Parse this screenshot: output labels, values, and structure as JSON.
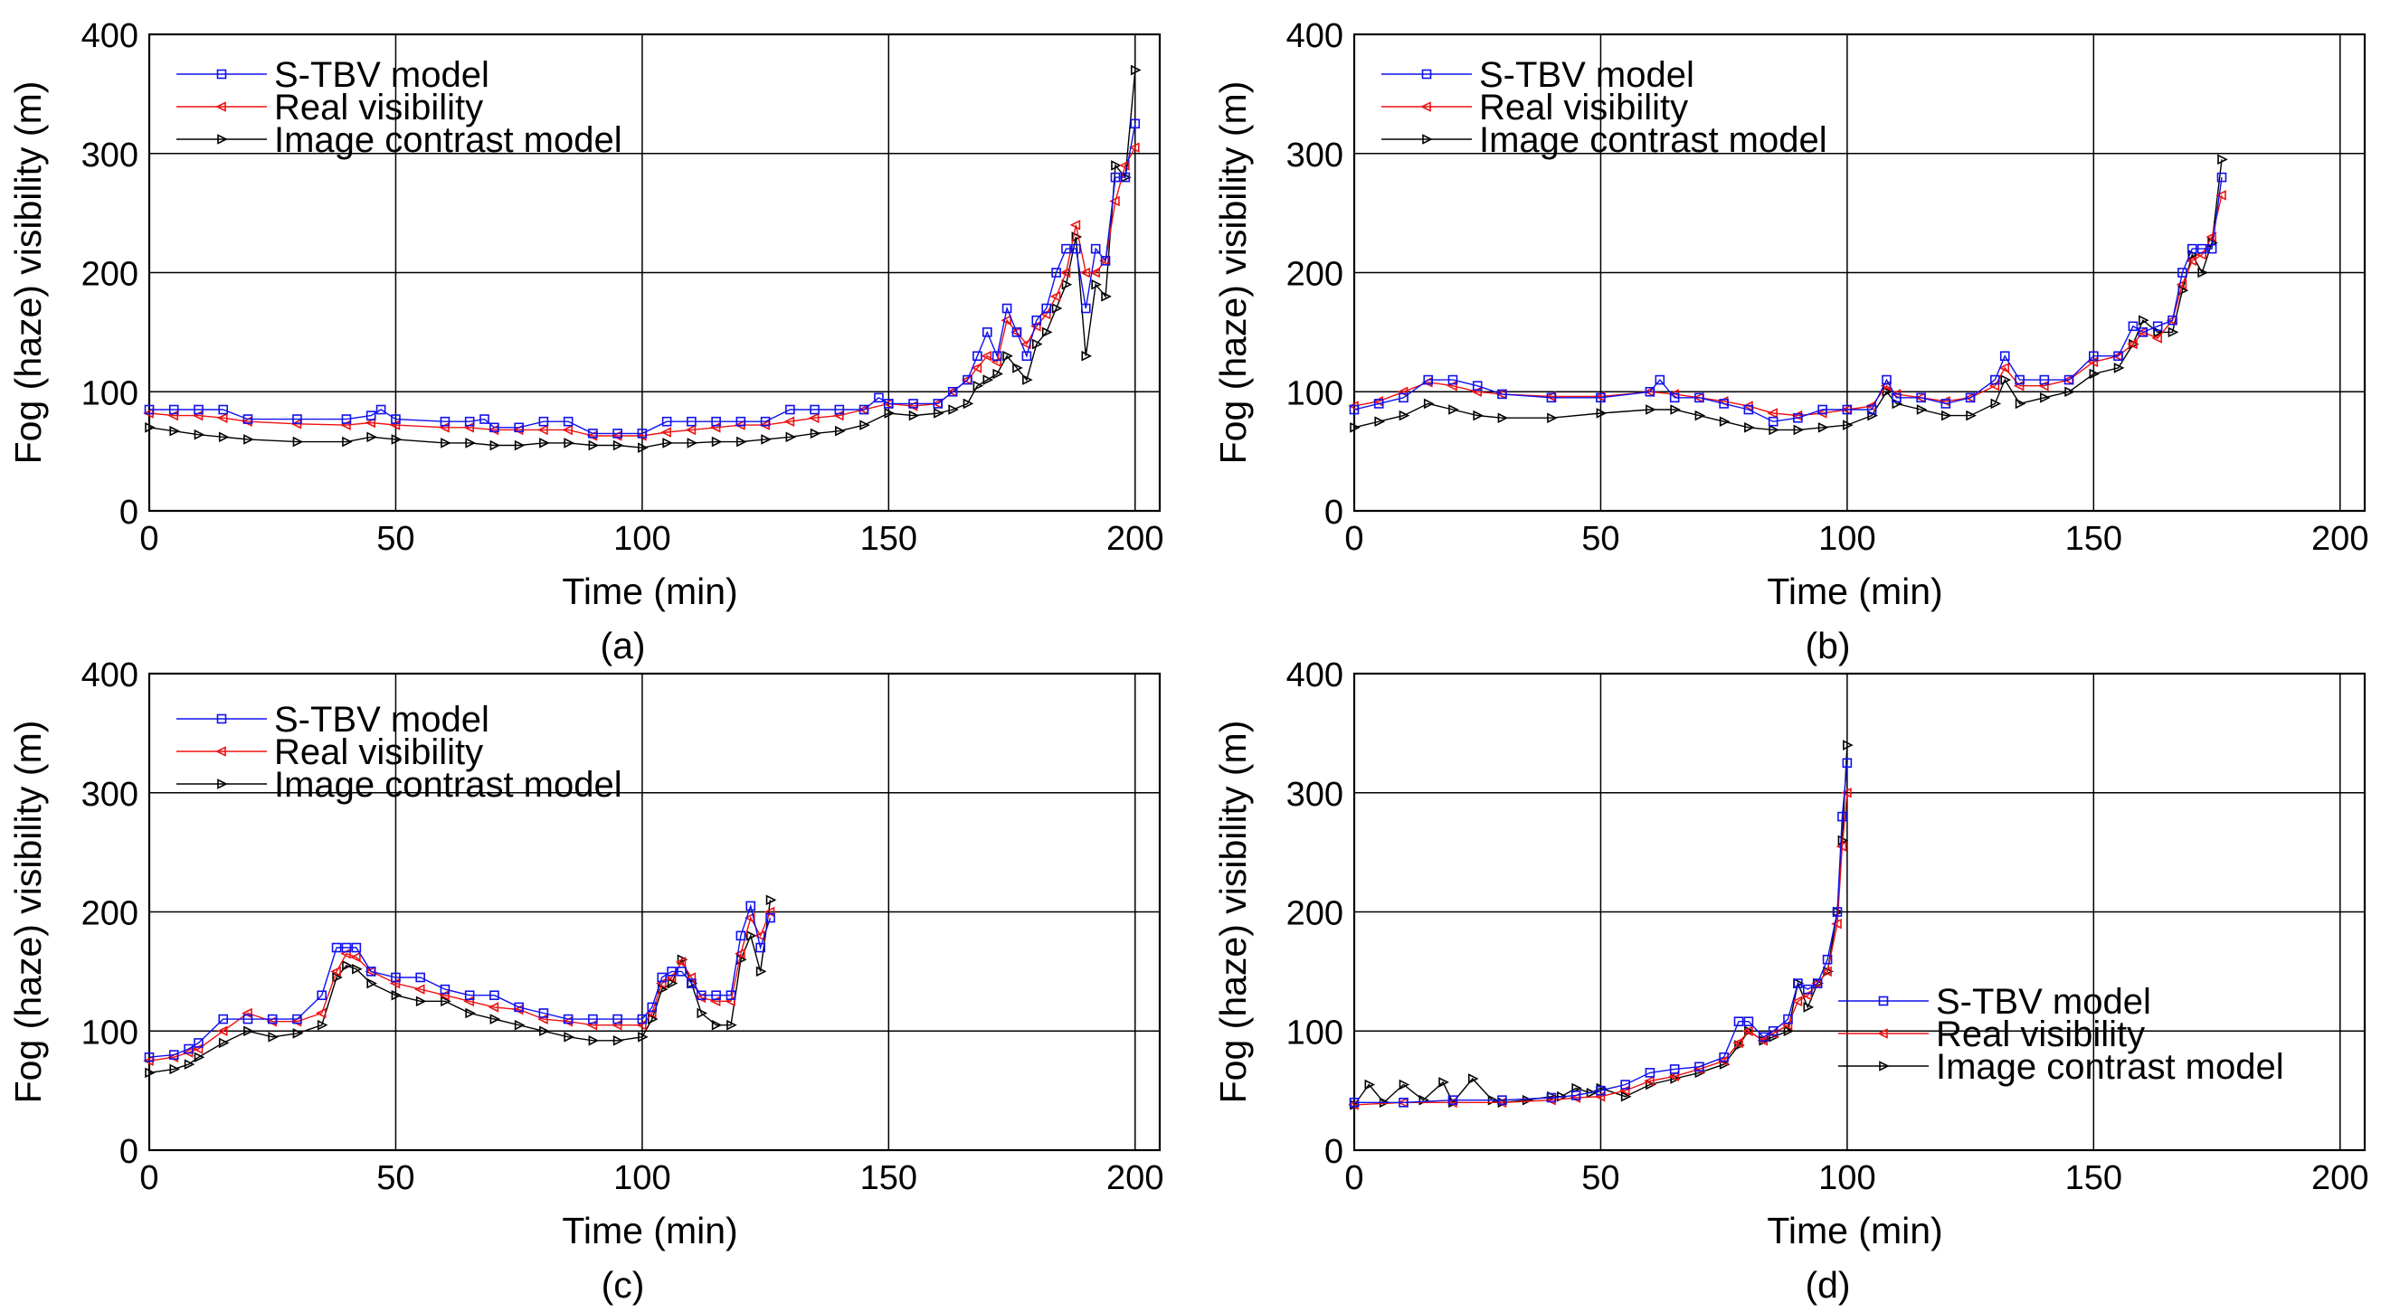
{
  "figure": {
    "x_label": "Time (min)",
    "y_label": "Fog (haze) visibility (m)",
    "colors": {
      "stbv": "#1010ee",
      "real": "#ee1111",
      "contrast": "#000000",
      "grid": "#000000"
    }
  },
  "chart_data": [
    {
      "type": "line",
      "caption": "(a)",
      "xlabel": "Time (min)",
      "ylabel": "Fog (haze) visibility (m)",
      "xlim": [
        0,
        205
      ],
      "ylim": [
        0,
        400
      ],
      "xticks": [
        0,
        50,
        100,
        150,
        200
      ],
      "yticks": [
        0,
        100,
        200,
        300,
        400
      ],
      "grid": true,
      "legend_position": "top-left",
      "series": [
        {
          "name": "S-TBV model",
          "marker": "square",
          "x": [
            0,
            5,
            10,
            15,
            20,
            30,
            40,
            45,
            47,
            50,
            60,
            65,
            68,
            70,
            75,
            80,
            85,
            90,
            95,
            100,
            105,
            110,
            115,
            120,
            125,
            130,
            135,
            140,
            145,
            148,
            150,
            155,
            160,
            163,
            166,
            168,
            170,
            172,
            174,
            176,
            178,
            180,
            182,
            184,
            186,
            188,
            190,
            192,
            194,
            196,
            198,
            200
          ],
          "y": [
            85,
            85,
            85,
            85,
            77,
            77,
            77,
            80,
            85,
            77,
            75,
            75,
            77,
            70,
            70,
            75,
            75,
            65,
            65,
            65,
            75,
            75,
            75,
            75,
            75,
            85,
            85,
            85,
            85,
            95,
            90,
            90,
            90,
            100,
            110,
            130,
            150,
            130,
            170,
            150,
            130,
            160,
            170,
            200,
            220,
            220,
            170,
            220,
            210,
            280,
            280,
            325
          ]
        },
        {
          "name": "Real visibility",
          "marker": "triangle-left",
          "x": [
            0,
            5,
            10,
            15,
            20,
            30,
            40,
            45,
            50,
            60,
            65,
            70,
            75,
            80,
            85,
            90,
            95,
            100,
            105,
            110,
            115,
            120,
            125,
            130,
            135,
            140,
            145,
            150,
            155,
            160,
            163,
            166,
            168,
            170,
            172,
            174,
            176,
            178,
            180,
            182,
            184,
            186,
            188,
            190,
            192,
            194,
            196,
            198,
            200
          ],
          "y": [
            82,
            80,
            80,
            78,
            75,
            73,
            72,
            74,
            72,
            70,
            70,
            68,
            68,
            68,
            68,
            63,
            63,
            63,
            66,
            68,
            70,
            72,
            72,
            75,
            78,
            80,
            85,
            90,
            88,
            90,
            100,
            110,
            120,
            130,
            125,
            160,
            150,
            140,
            155,
            165,
            180,
            200,
            240,
            200,
            200,
            210,
            260,
            290,
            305
          ]
        },
        {
          "name": "Image contrast model",
          "marker": "triangle-right",
          "x": [
            0,
            5,
            10,
            15,
            20,
            30,
            40,
            45,
            50,
            60,
            65,
            70,
            75,
            80,
            85,
            90,
            95,
            100,
            105,
            110,
            115,
            120,
            125,
            130,
            135,
            140,
            145,
            150,
            155,
            160,
            163,
            166,
            168,
            170,
            172,
            174,
            176,
            178,
            180,
            182,
            184,
            186,
            188,
            190,
            192,
            194,
            196,
            198,
            200
          ],
          "y": [
            70,
            67,
            64,
            62,
            60,
            58,
            58,
            62,
            60,
            57,
            57,
            55,
            55,
            57,
            57,
            55,
            55,
            53,
            57,
            57,
            58,
            58,
            60,
            62,
            65,
            67,
            72,
            82,
            80,
            82,
            85,
            90,
            105,
            110,
            115,
            130,
            120,
            110,
            140,
            150,
            170,
            190,
            230,
            130,
            190,
            180,
            290,
            280,
            370
          ]
        }
      ]
    },
    {
      "type": "line",
      "caption": "(b)",
      "xlabel": "Time (min)",
      "ylabel": "Fog (haze) visibility (m)",
      "xlim": [
        0,
        205
      ],
      "ylim": [
        0,
        400
      ],
      "xticks": [
        0,
        50,
        100,
        150,
        200
      ],
      "yticks": [
        0,
        100,
        200,
        300,
        400
      ],
      "grid": true,
      "legend_position": "top-left",
      "series": [
        {
          "name": "S-TBV model",
          "marker": "square",
          "x": [
            0,
            5,
            10,
            15,
            20,
            25,
            30,
            40,
            50,
            60,
            62,
            65,
            70,
            75,
            80,
            85,
            90,
            95,
            100,
            105,
            108,
            110,
            115,
            120,
            125,
            130,
            132,
            135,
            140,
            145,
            150,
            155,
            158,
            160,
            163,
            166,
            168,
            170,
            172,
            174,
            176
          ],
          "y": [
            85,
            90,
            95,
            110,
            110,
            105,
            98,
            95,
            95,
            100,
            110,
            95,
            95,
            90,
            85,
            75,
            78,
            85,
            85,
            85,
            110,
            95,
            95,
            90,
            95,
            110,
            130,
            110,
            110,
            110,
            130,
            130,
            155,
            150,
            155,
            160,
            200,
            220,
            220,
            220,
            280
          ]
        },
        {
          "name": "Real visibility",
          "marker": "triangle-left",
          "x": [
            0,
            5,
            10,
            15,
            20,
            25,
            30,
            40,
            50,
            60,
            65,
            70,
            75,
            80,
            85,
            90,
            95,
            100,
            105,
            108,
            110,
            115,
            120,
            125,
            130,
            132,
            135,
            140,
            145,
            150,
            155,
            158,
            160,
            163,
            166,
            168,
            170,
            172,
            174,
            176
          ],
          "y": [
            88,
            92,
            100,
            108,
            105,
            100,
            98,
            96,
            96,
            100,
            98,
            95,
            92,
            88,
            82,
            80,
            82,
            85,
            88,
            105,
            98,
            95,
            92,
            95,
            105,
            120,
            105,
            105,
            110,
            125,
            130,
            140,
            150,
            145,
            160,
            190,
            210,
            215,
            230,
            265
          ]
        },
        {
          "name": "Image contrast model",
          "marker": "triangle-right",
          "x": [
            0,
            5,
            10,
            15,
            20,
            25,
            30,
            40,
            50,
            60,
            65,
            70,
            75,
            80,
            85,
            90,
            95,
            100,
            105,
            108,
            110,
            115,
            120,
            125,
            130,
            132,
            135,
            140,
            145,
            150,
            155,
            158,
            160,
            163,
            166,
            168,
            170,
            172,
            174,
            176
          ],
          "y": [
            70,
            75,
            80,
            90,
            85,
            80,
            78,
            78,
            82,
            85,
            85,
            80,
            75,
            70,
            68,
            68,
            70,
            72,
            80,
            100,
            90,
            85,
            80,
            80,
            90,
            110,
            90,
            95,
            100,
            115,
            120,
            140,
            160,
            150,
            150,
            185,
            215,
            200,
            225,
            295
          ]
        }
      ]
    },
    {
      "type": "line",
      "caption": "(c)",
      "xlabel": "Time (min)",
      "ylabel": "Fog (haze) visibility (m)",
      "xlim": [
        0,
        205
      ],
      "ylim": [
        0,
        400
      ],
      "xticks": [
        0,
        50,
        100,
        150,
        200
      ],
      "yticks": [
        0,
        100,
        200,
        300,
        400
      ],
      "grid": true,
      "legend_position": "top-left",
      "series": [
        {
          "name": "S-TBV model",
          "marker": "square",
          "x": [
            0,
            5,
            8,
            10,
            15,
            20,
            25,
            30,
            35,
            38,
            40,
            42,
            45,
            50,
            55,
            60,
            65,
            70,
            75,
            80,
            85,
            90,
            95,
            100,
            102,
            104,
            106,
            108,
            110,
            112,
            115,
            118,
            120,
            122,
            124,
            126
          ],
          "y": [
            78,
            80,
            85,
            90,
            110,
            110,
            110,
            110,
            130,
            170,
            170,
            170,
            150,
            145,
            145,
            135,
            130,
            130,
            120,
            115,
            110,
            110,
            110,
            110,
            120,
            145,
            150,
            150,
            140,
            130,
            130,
            130,
            180,
            205,
            170,
            195
          ]
        },
        {
          "name": "Real visibility",
          "marker": "triangle-left",
          "x": [
            0,
            5,
            8,
            10,
            15,
            20,
            25,
            30,
            35,
            38,
            40,
            42,
            45,
            50,
            55,
            60,
            65,
            70,
            75,
            80,
            85,
            90,
            95,
            100,
            102,
            104,
            106,
            108,
            110,
            112,
            115,
            118,
            120,
            122,
            124,
            126
          ],
          "y": [
            75,
            78,
            82,
            85,
            100,
            115,
            108,
            108,
            115,
            150,
            165,
            162,
            150,
            140,
            135,
            130,
            125,
            120,
            118,
            110,
            108,
            105,
            105,
            105,
            115,
            140,
            145,
            158,
            145,
            128,
            125,
            125,
            165,
            195,
            180,
            200
          ]
        },
        {
          "name": "Image contrast model",
          "marker": "triangle-right",
          "x": [
            0,
            5,
            8,
            10,
            15,
            20,
            25,
            30,
            35,
            38,
            40,
            42,
            45,
            50,
            55,
            60,
            65,
            70,
            75,
            80,
            85,
            90,
            95,
            100,
            102,
            104,
            106,
            108,
            110,
            112,
            115,
            118,
            120,
            122,
            124,
            126
          ],
          "y": [
            65,
            68,
            72,
            78,
            90,
            100,
            95,
            98,
            105,
            145,
            155,
            152,
            140,
            130,
            125,
            125,
            115,
            110,
            105,
            100,
            95,
            92,
            92,
            95,
            110,
            135,
            140,
            160,
            140,
            115,
            105,
            105,
            160,
            180,
            150,
            210
          ]
        }
      ]
    },
    {
      "type": "line",
      "caption": "(d)",
      "xlabel": "Time (min)",
      "ylabel": "Fog (haze) visibility (m)",
      "xlim": [
        0,
        205
      ],
      "ylim": [
        0,
        400
      ],
      "xticks": [
        0,
        50,
        100,
        150,
        200
      ],
      "yticks": [
        0,
        100,
        200,
        300,
        400
      ],
      "grid": true,
      "legend_position": "bottom-right",
      "series": [
        {
          "name": "S-TBV model",
          "marker": "square",
          "x": [
            0,
            10,
            20,
            30,
            40,
            45,
            50,
            55,
            60,
            65,
            70,
            75,
            78,
            80,
            83,
            85,
            88,
            90,
            92,
            94,
            96,
            98,
            99,
            100
          ],
          "y": [
            40,
            40,
            42,
            42,
            44,
            46,
            50,
            55,
            65,
            68,
            70,
            78,
            108,
            108,
            95,
            100,
            110,
            140,
            135,
            140,
            160,
            200,
            280,
            325
          ]
        },
        {
          "name": "Real visibility",
          "marker": "triangle-left",
          "x": [
            0,
            10,
            20,
            30,
            40,
            45,
            50,
            55,
            60,
            65,
            70,
            75,
            78,
            80,
            83,
            85,
            88,
            90,
            92,
            94,
            96,
            98,
            99,
            100
          ],
          "y": [
            38,
            40,
            40,
            40,
            42,
            44,
            45,
            50,
            58,
            62,
            68,
            75,
            90,
            100,
            92,
            98,
            105,
            125,
            130,
            140,
            150,
            190,
            255,
            300
          ]
        },
        {
          "name": "Image contrast model",
          "marker": "triangle-right",
          "x": [
            0,
            3,
            6,
            10,
            14,
            18,
            20,
            24,
            28,
            30,
            35,
            40,
            42,
            45,
            48,
            50,
            55,
            60,
            65,
            70,
            75,
            78,
            80,
            83,
            85,
            88,
            90,
            92,
            94,
            96,
            98,
            99,
            100
          ],
          "y": [
            38,
            55,
            40,
            55,
            42,
            57,
            40,
            60,
            42,
            40,
            42,
            45,
            45,
            52,
            48,
            52,
            45,
            55,
            60,
            65,
            72,
            88,
            100,
            92,
            95,
            100,
            140,
            120,
            140,
            150,
            200,
            260,
            340
          ]
        }
      ]
    }
  ]
}
